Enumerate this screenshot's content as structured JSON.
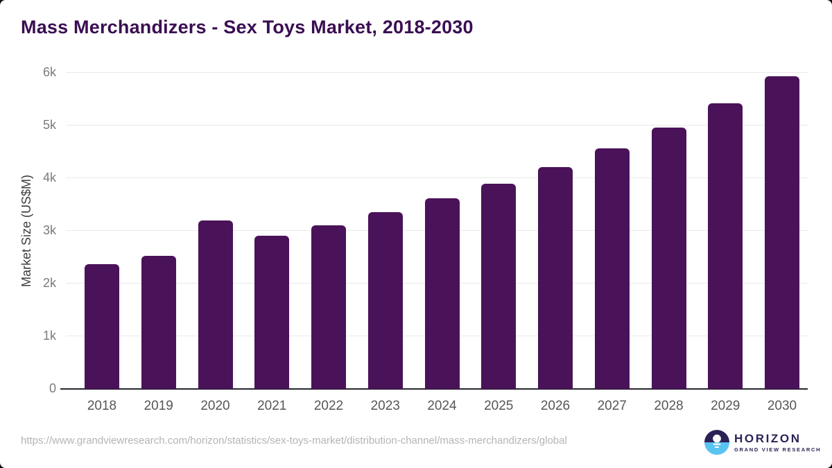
{
  "title": "Mass Merchandizers - Sex Toys Market, 2018-2030",
  "chart_data": {
    "type": "bar",
    "title": "Mass Merchandizers - Sex Toys Market, 2018-2030",
    "categories": [
      "2018",
      "2019",
      "2020",
      "2021",
      "2022",
      "2023",
      "2024",
      "2025",
      "2026",
      "2027",
      "2028",
      "2029",
      "2030"
    ],
    "values": [
      2350,
      2510,
      3185,
      2890,
      3090,
      3340,
      3600,
      3880,
      4200,
      4550,
      4950,
      5410,
      5920
    ],
    "xlabel": "",
    "ylabel": "Market Size (US$M)",
    "ylim": [
      0,
      6000
    ],
    "ytick_labels": [
      "0",
      "1k",
      "2k",
      "3k",
      "4k",
      "5k",
      "6k"
    ],
    "grid": true,
    "legend": false,
    "bar_color": "#4a1258"
  },
  "colors": {
    "title": "#3a0e52",
    "bar": "#4a1258",
    "axis": "#26262e",
    "gridline": "#e9e9e9",
    "logo_dark": "#2c2156",
    "logo_blue": "#5ac4f1"
  },
  "footer": {
    "source_url": "https://www.grandviewresearch.com/horizon/statistics/sex-toys-market/distribution-channel/mass-merchandizers/global",
    "logo": {
      "title": "HORIZON",
      "subtitle": "GRAND VIEW RESEARCH"
    }
  }
}
